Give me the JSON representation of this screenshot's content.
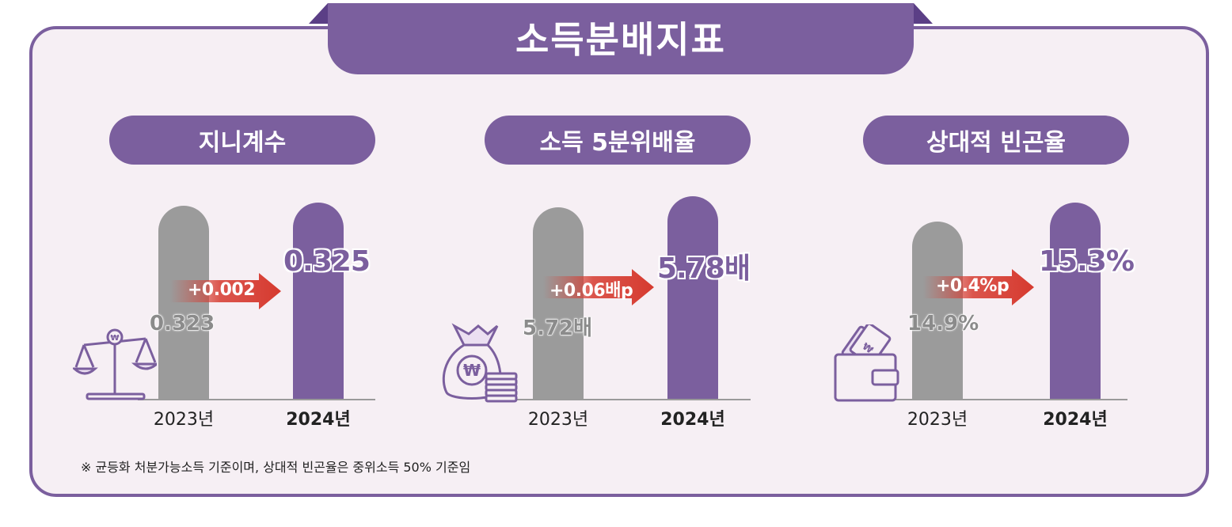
{
  "title": "소득분배지표",
  "footnote": "※ 균등화 처분가능소득 기준이며, 상대적 빈곤율은 중위소득 50% 기준임",
  "colors": {
    "accent": "#7b5f9e",
    "bar_2023": "#9b9b9b",
    "arrow": "#d63a2f"
  },
  "chart_data": [
    {
      "type": "bar",
      "title": "지니계수",
      "categories": [
        "2023년",
        "2024년"
      ],
      "values": [
        0.323,
        0.325
      ],
      "value_labels": [
        "0.323",
        "0.325"
      ],
      "change_label": "+0.002",
      "icon": "scale-icon"
    },
    {
      "type": "bar",
      "title": "소득 5분위배율",
      "categories": [
        "2023년",
        "2024년"
      ],
      "values": [
        5.72,
        5.78
      ],
      "value_labels": [
        "5.72배",
        "5.78배"
      ],
      "change_label": "+0.06배p",
      "icon": "money-bag-icon"
    },
    {
      "type": "bar",
      "title": "상대적 빈곤율",
      "categories": [
        "2023년",
        "2024년"
      ],
      "values": [
        14.9,
        15.3
      ],
      "value_labels": [
        "14.9%",
        "15.3%"
      ],
      "change_label": "+0.4%p",
      "icon": "wallet-icon"
    }
  ]
}
